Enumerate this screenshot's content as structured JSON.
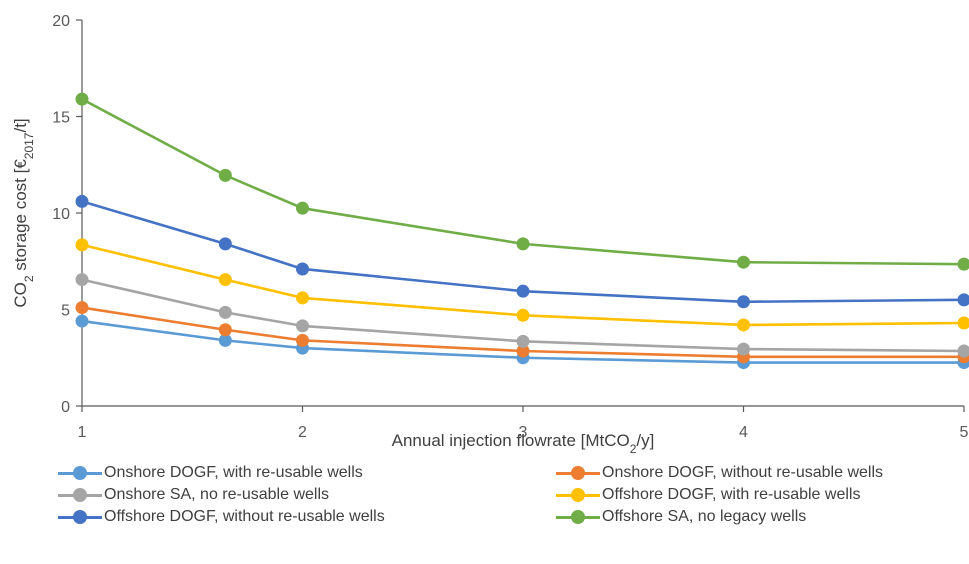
{
  "chart_data": {
    "type": "line",
    "xlabel_parts": [
      "Annual injection flowrate [MtCO",
      "2",
      "/y]"
    ],
    "ylabel_parts": [
      "CO",
      "2",
      " storage cost [€",
      "2017",
      "/t]"
    ],
    "xlim": [
      1,
      5
    ],
    "ylim": [
      0,
      20
    ],
    "xticks": [
      1,
      2,
      3,
      4,
      5
    ],
    "yticks": [
      0,
      5,
      10,
      15,
      20
    ],
    "x": [
      1,
      1.65,
      2,
      3,
      4,
      5
    ],
    "series": [
      {
        "name": "Onshore DOGF, with re-usable wells",
        "color": "#5B9BD5",
        "values": [
          4.4,
          3.4,
          3.0,
          2.5,
          2.25,
          2.25
        ]
      },
      {
        "name": "Onshore DOGF, without re-usable wells",
        "color": "#ED7D31",
        "values": [
          5.1,
          3.95,
          3.4,
          2.85,
          2.55,
          2.55
        ]
      },
      {
        "name": "Onshore SA, no re-usable wells",
        "color": "#A5A5A5",
        "values": [
          6.55,
          4.85,
          4.15,
          3.35,
          2.95,
          2.85
        ]
      },
      {
        "name": "Offshore DOGF, with re-usable wells",
        "color": "#FFC000",
        "values": [
          8.35,
          6.55,
          5.6,
          4.7,
          4.2,
          4.3
        ]
      },
      {
        "name": "Offshore DOGF, without re-usable wells",
        "color": "#4472C4",
        "values": [
          10.6,
          8.4,
          7.1,
          5.95,
          5.4,
          5.5
        ]
      },
      {
        "name": "Offshore SA, no legacy wells",
        "color": "#70AD47",
        "values": [
          15.9,
          11.95,
          10.25,
          8.4,
          7.45,
          7.35
        ]
      }
    ],
    "grid": false,
    "legend_position": "bottom"
  }
}
